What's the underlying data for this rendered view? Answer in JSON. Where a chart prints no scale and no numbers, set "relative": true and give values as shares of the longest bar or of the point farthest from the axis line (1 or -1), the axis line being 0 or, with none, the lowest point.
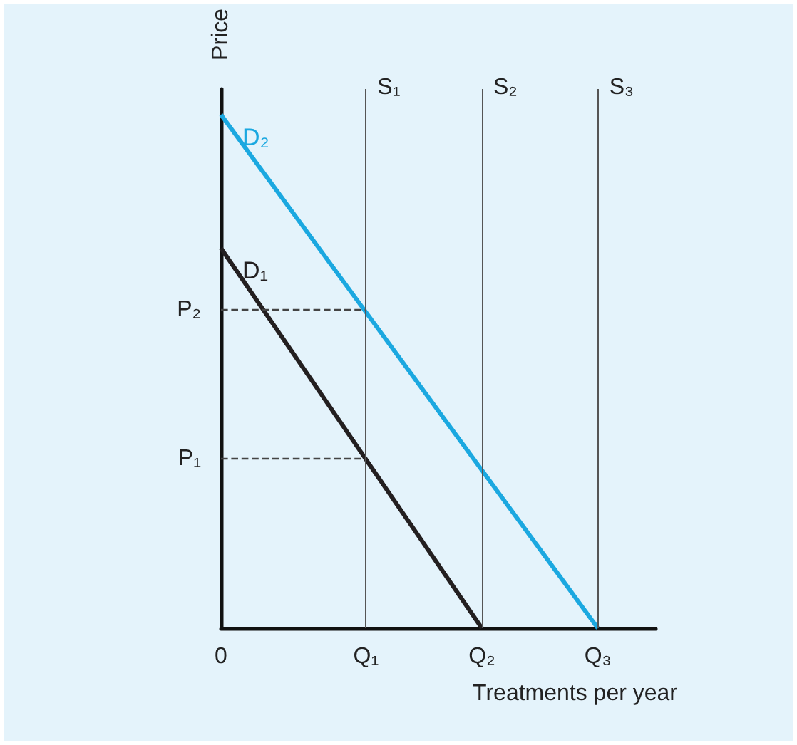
{
  "chart_data": {
    "type": "line",
    "relative": true,
    "xlabel": "Treatments per year",
    "ylabel": "Price",
    "categories": [
      "0",
      null,
      null,
      null,
      null,
      null,
      null,
      null,
      null,
      null,
      "Q₁",
      null,
      null,
      null,
      null,
      null,
      null,
      null,
      "Q₂",
      null,
      null,
      null,
      null,
      null,
      null,
      null,
      "Q₃",
      null,
      null,
      null,
      null
    ],
    "series": [
      {
        "name": "D₂",
        "color": "#1ba8e0",
        "values": [
          1,
          null,
          null,
          null,
          null,
          null,
          null,
          null,
          null,
          null,
          null,
          null,
          null,
          null,
          null,
          null,
          null,
          null,
          null,
          null,
          null,
          null,
          null,
          null,
          null,
          null,
          0,
          null,
          null,
          null,
          null
        ]
      },
      {
        "name": "D₁",
        "color": "#231f20",
        "values": [
          0.74,
          null,
          null,
          null,
          null,
          null,
          null,
          null,
          null,
          null,
          null,
          null,
          null,
          null,
          null,
          null,
          null,
          null,
          0,
          null,
          null,
          null,
          null,
          null,
          null,
          null,
          null,
          null,
          null,
          null,
          null
        ]
      },
      {
        "name": "P₂",
        "color": "#444444",
        "line_style": "dashed",
        "values": [
          0.62,
          null,
          null,
          null,
          null,
          null,
          null,
          null,
          null,
          null,
          0.62,
          null,
          null,
          null,
          null,
          null,
          null,
          null,
          null,
          null,
          null,
          null,
          null,
          null,
          null,
          null,
          null,
          null,
          null,
          null,
          null
        ]
      },
      {
        "name": "P₁",
        "color": "#444444",
        "line_style": "dashed",
        "values": [
          0.33,
          null,
          null,
          null,
          null,
          null,
          null,
          null,
          null,
          null,
          0.33,
          null,
          null,
          null,
          null,
          null,
          null,
          null,
          null,
          null,
          null,
          null,
          null,
          null,
          null,
          null,
          null,
          null,
          null,
          null,
          null
        ]
      }
    ],
    "ref_lines": [
      {
        "axis": "x",
        "value": "Q₁",
        "label": "S₁",
        "color": "#555555"
      },
      {
        "axis": "x",
        "value": "Q₂",
        "label": "S₂",
        "color": "#555555"
      },
      {
        "axis": "x",
        "value": "Q₃",
        "label": "S₃",
        "color": "#555555"
      }
    ],
    "legend": false,
    "marker": "none",
    "line_style": "solid"
  }
}
